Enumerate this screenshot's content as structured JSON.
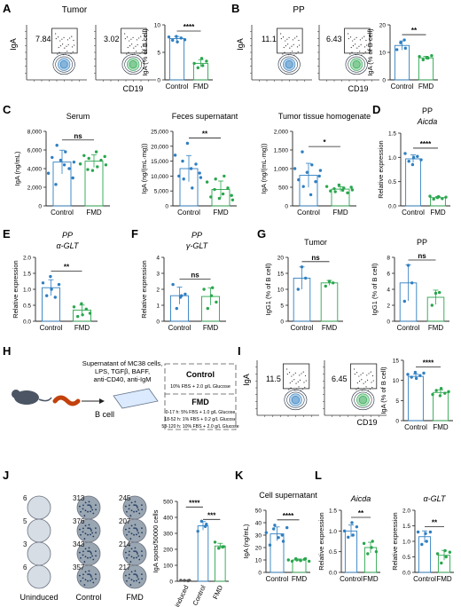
{
  "colors": {
    "control": "#2f7fc1",
    "fmd": "#2aa64e",
    "axis": "#222222",
    "uninduced": "#555555"
  },
  "panels": {
    "A": {
      "letter": "A",
      "title": "Tumor",
      "flow_ylabel": "IgA",
      "flow_xlabel": "CD19",
      "gates": [
        "7.84",
        "3.02"
      ],
      "sig": "****"
    },
    "B": {
      "letter": "B",
      "title": "PP",
      "flow_ylabel": "IgA",
      "flow_xlabel": "CD19",
      "gates": [
        "11.1",
        "6.43"
      ],
      "sig": "**"
    },
    "C": {
      "letter": "C"
    },
    "D": {
      "letter": "D",
      "title": "PP",
      "subtitle": "Aicda",
      "sig": "****"
    },
    "E": {
      "letter": "E",
      "title": "PP",
      "subtitle": "α-GLT",
      "sig": "**"
    },
    "F": {
      "letter": "F",
      "title": "PP",
      "subtitle": "γ-GLT",
      "sig": "ns"
    },
    "G": {
      "letter": "G",
      "sig": "ns"
    },
    "H": {
      "letter": "H",
      "supernatant_lines": [
        "Supernatant of MC38 cells,",
        "LPS, TGFβ, BAFF,",
        "anti-CD40, anti-IgM"
      ],
      "bcell_label": "B cell",
      "control_label": "Control",
      "control_desc": "10% FBS + 2.0 g/L Glucose",
      "fmd_label": "FMD",
      "fmd_desc": [
        "0-17 h: 5% FBS + 1.0 g/L Glucose",
        "18-52 h: 1% FBS + 0.2 g/L Glucose",
        "53-120 h: 10% FBS + 2.0 g/L Glucose"
      ]
    },
    "I": {
      "letter": "I",
      "flow_ylabel": "IgA",
      "flow_xlabel": "CD19",
      "gates": [
        "11.5",
        "6.45"
      ],
      "sig": "****"
    },
    "J": {
      "letter": "J",
      "well_counts": [
        [
          "6",
          "313",
          "245"
        ],
        [
          "5",
          "376",
          "207"
        ],
        [
          "3",
          "343",
          "214"
        ],
        [
          "6",
          "357",
          "217"
        ]
      ],
      "well_columns": [
        "Uninduced",
        "Control",
        "FMD"
      ],
      "sig": [
        "****",
        "***"
      ]
    },
    "K": {
      "letter": "K",
      "title": "Cell supernatant",
      "sig": "****"
    },
    "L": {
      "letter": "L",
      "sig": [
        "**",
        "**"
      ]
    }
  },
  "chart_data": [
    {
      "id": "A",
      "type": "bar",
      "categories": [
        "Control",
        "FMD"
      ],
      "values": [
        7.5,
        3.0
      ],
      "points": [
        [
          7.8,
          7.2,
          7.9,
          6.9,
          7.6,
          7.3
        ],
        [
          3.0,
          2.2,
          3.9,
          2.6,
          3.4
        ]
      ],
      "ylabel": "IgA (% of B cell)",
      "ylim": [
        0,
        10
      ],
      "yticks": [
        0,
        5,
        10
      ],
      "sig": "****"
    },
    {
      "id": "B",
      "type": "bar",
      "categories": [
        "Control",
        "FMD"
      ],
      "values": [
        12.5,
        8.0
      ],
      "points": [
        [
          11.0,
          13.5,
          14.5,
          11.5
        ],
        [
          8.5,
          7.3,
          8.1,
          7.9,
          8.8
        ]
      ],
      "ylabel": "IgA (% of B cell)",
      "ylim": [
        0,
        20
      ],
      "yticks": [
        0,
        10,
        20
      ],
      "sig": "**"
    },
    {
      "id": "C1",
      "type": "bar",
      "title": "Serum",
      "categories": [
        "Control",
        "FMD"
      ],
      "values": [
        4700,
        4800
      ],
      "points": [
        [
          3500,
          5200,
          2300,
          6500,
          4900,
          4400,
          5800,
          4000,
          3000,
          4700
        ],
        [
          4500,
          5400,
          3900,
          5100,
          3800,
          5800,
          4200,
          4900,
          5300,
          4400
        ]
      ],
      "ylabel": "IgA (ng/mL)",
      "ylim": [
        0,
        8000
      ],
      "yticks": [
        0,
        2000,
        4000,
        6000,
        8000
      ],
      "sig": "ns"
    },
    {
      "id": "C2",
      "type": "bar",
      "title": "Feces supernatant",
      "categories": [
        "Control",
        "FMD"
      ],
      "values": [
        12500,
        5500
      ],
      "points": [
        [
          17000,
          10000,
          15000,
          9000,
          21000,
          12500,
          6000,
          14000,
          11000,
          9500
        ],
        [
          8000,
          3000,
          5500,
          9000,
          2500,
          4000,
          10000,
          6000,
          3500,
          2000
        ]
      ],
      "ylabel": "IgA (ng/(mL·mg))",
      "ylim": [
        0,
        25000
      ],
      "yticks": [
        0,
        5000,
        10000,
        15000,
        20000,
        25000
      ],
      "sig": "**"
    },
    {
      "id": "C3",
      "type": "bar",
      "title": "Tumor tissue homogenate",
      "categories": [
        "Control",
        "FMD"
      ],
      "values": [
        820,
        450
      ],
      "points": [
        [
          1000,
          700,
          1450,
          520,
          900,
          300,
          1100,
          650,
          800,
          950
        ],
        [
          520,
          400,
          460,
          380,
          560,
          420,
          480,
          350,
          500,
          430
        ]
      ],
      "ylabel": "IgA (ng/(mL·mg))",
      "ylim": [
        0,
        2000
      ],
      "yticks": [
        0,
        500,
        1000,
        1500,
        2000
      ],
      "sig": "*"
    },
    {
      "id": "D",
      "type": "bar",
      "title": "PP",
      "subtitle": "Aicda",
      "categories": [
        "Control",
        "FMD"
      ],
      "values": [
        0.97,
        0.17
      ],
      "points": [
        [
          1.08,
          0.92,
          0.85,
          1.0,
          1.02,
          0.95
        ],
        [
          0.2,
          0.14,
          0.17,
          0.19,
          0.15,
          0.18
        ]
      ],
      "ylabel": "Relative expression",
      "ylim": [
        0,
        1.5
      ],
      "yticks": [
        0.0,
        0.5,
        1.0,
        1.5
      ],
      "sig": "****"
    },
    {
      "id": "E",
      "type": "bar",
      "title": "PP",
      "subtitle": "α-GLT",
      "categories": [
        "Control",
        "FMD"
      ],
      "values": [
        1.05,
        0.35
      ],
      "points": [
        [
          1.2,
          0.8,
          1.4,
          1.0,
          0.75,
          1.15
        ],
        [
          0.45,
          0.15,
          0.55,
          0.2,
          0.38,
          0.25
        ]
      ],
      "ylabel": "Relative expression",
      "ylim": [
        0,
        2.0
      ],
      "yticks": [
        0.0,
        0.5,
        1.0,
        1.5,
        2.0
      ],
      "sig": "**"
    },
    {
      "id": "F",
      "type": "bar",
      "title": "PP",
      "subtitle": "γ-GLT",
      "categories": [
        "Control",
        "FMD"
      ],
      "values": [
        1.6,
        1.55
      ],
      "points": [
        [
          2.3,
          0.8,
          1.5,
          1.6,
          1.7
        ],
        [
          2.0,
          0.8,
          1.6,
          2.1,
          1.2
        ]
      ],
      "ylabel": "Relative expression",
      "ylim": [
        0,
        4
      ],
      "yticks": [
        0,
        1,
        2,
        3,
        4
      ],
      "sig": "ns"
    },
    {
      "id": "G1",
      "type": "bar",
      "title": "Tumor",
      "categories": [
        "Control",
        "FMD"
      ],
      "values": [
        13.5,
        12.0
      ],
      "points": [
        [
          10.0,
          17.0,
          13.5
        ],
        [
          11.0,
          12.5,
          12.0
        ]
      ],
      "ylabel": "IgG1 (% of B cell)",
      "ylim": [
        0,
        20
      ],
      "yticks": [
        0,
        5,
        10,
        15,
        20
      ],
      "sig": "ns"
    },
    {
      "id": "G2",
      "type": "bar",
      "title": "PP",
      "categories": [
        "Control",
        "FMD"
      ],
      "values": [
        4.8,
        3.0
      ],
      "points": [
        [
          2.5,
          7.0,
          4.8
        ],
        [
          2.0,
          3.5,
          3.6
        ]
      ],
      "ylabel": "IgG1 (% of B cell)",
      "ylim": [
        0,
        8
      ],
      "yticks": [
        0,
        2,
        4,
        6,
        8
      ],
      "sig": "ns"
    },
    {
      "id": "I",
      "type": "bar",
      "categories": [
        "Control",
        "FMD"
      ],
      "values": [
        11.0,
        7.0
      ],
      "points": [
        [
          11.5,
          10.8,
          12.0,
          10.5,
          11.2,
          11.8
        ],
        [
          6.5,
          7.5,
          6.2,
          8.0,
          6.8,
          7.2
        ]
      ],
      "ylabel": "IgA (% of B cell)",
      "ylim": [
        0,
        15
      ],
      "yticks": [
        0,
        5,
        10,
        15
      ],
      "sig": "****"
    },
    {
      "id": "J",
      "type": "bar",
      "categories": [
        "Uninduced",
        "Control",
        "FMD"
      ],
      "values": [
        5,
        347,
        221
      ],
      "points": [
        [
          6,
          5,
          3,
          6
        ],
        [
          313,
          376,
          343,
          357
        ],
        [
          245,
          207,
          214,
          217
        ]
      ],
      "ylabel": "IgA spots/50000 cells",
      "ylim": [
        0,
        500
      ],
      "yticks": [
        0,
        100,
        200,
        300,
        400,
        500
      ],
      "sig": [
        "****",
        "***"
      ]
    },
    {
      "id": "K",
      "type": "bar",
      "title": "Cell supernatant",
      "categories": [
        "Control",
        "FMD"
      ],
      "values": [
        31,
        10
      ],
      "points": [
        [
          32,
          22,
          35,
          38,
          28,
          30,
          25,
          36
        ],
        [
          10,
          9,
          11,
          10,
          9.5,
          10.5,
          11,
          9
        ]
      ],
      "ylabel": "IgA (ng/mL)",
      "ylim": [
        0,
        50
      ],
      "yticks": [
        0,
        10,
        20,
        30,
        40,
        50
      ],
      "sig": "****"
    },
    {
      "id": "L1",
      "type": "bar",
      "subtitle": "Aicda",
      "categories": [
        "Control",
        "FMD"
      ],
      "values": [
        1.0,
        0.6
      ],
      "points": [
        [
          1.0,
          0.85,
          1.2,
          0.9,
          1.1
        ],
        [
          0.7,
          0.45,
          0.6,
          0.75,
          0.5
        ]
      ],
      "ylabel": "Relative expression",
      "ylim": [
        0,
        1.5
      ],
      "yticks": [
        0.0,
        0.5,
        1.0,
        1.5
      ],
      "sig": "**"
    },
    {
      "id": "L2",
      "type": "bar",
      "subtitle": "α-GLT",
      "categories": [
        "Control",
        "FMD"
      ],
      "values": [
        1.15,
        0.55
      ],
      "points": [
        [
          1.3,
          0.9,
          1.25,
          1.0,
          1.3
        ],
        [
          0.6,
          0.3,
          0.7,
          0.5,
          0.65
        ]
      ],
      "ylabel": "Relative expression",
      "ylim": [
        0,
        2.0
      ],
      "yticks": [
        0.0,
        0.5,
        1.0,
        1.5,
        2.0
      ],
      "sig": "**"
    }
  ]
}
